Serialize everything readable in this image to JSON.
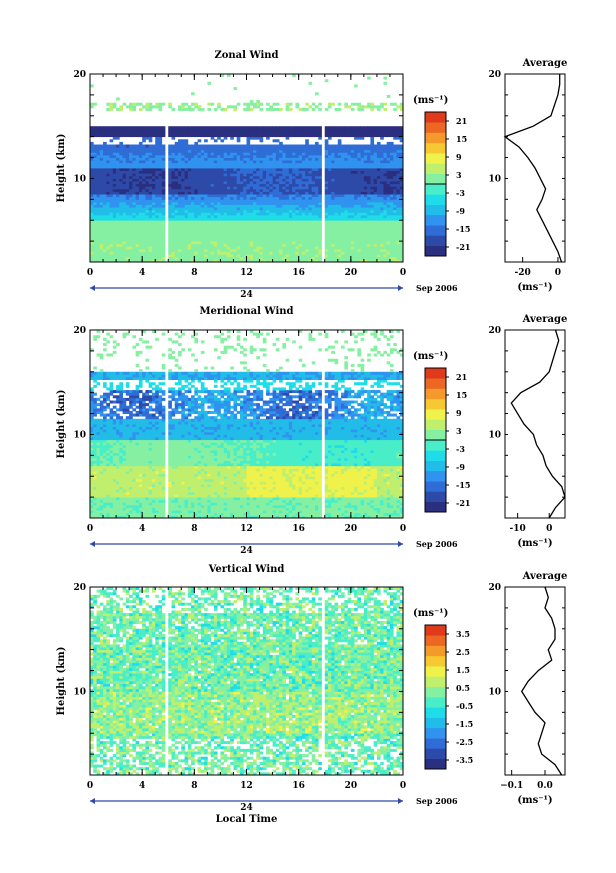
{
  "figure": {
    "xlabel": "Local Time",
    "date_label": "Sep 2006",
    "day_label": "24",
    "unit_label": "(ms⁻¹)"
  },
  "colors": {
    "palette": [
      "#2b2f7f",
      "#2e4aa8",
      "#2f6cd6",
      "#2f93ef",
      "#22bce8",
      "#1fdde8",
      "#49eec8",
      "#86f0a2",
      "#c0ef6e",
      "#eef24a",
      "#f6c832",
      "#f39a2a",
      "#ec6624",
      "#e03a1c"
    ]
  },
  "chart_data": [
    {
      "id": "zonal",
      "type": "heatmap",
      "title": "Zonal Wind",
      "ylabel": "Height (km)",
      "xlim": [
        0,
        24
      ],
      "xticks": [
        "0",
        "4",
        "8",
        "12",
        "16",
        "20",
        "0"
      ],
      "ylim": [
        2,
        20
      ],
      "yticks": [
        "10",
        "20"
      ],
      "colorbar": {
        "min": -24,
        "max": 24,
        "ticks": [
          "21",
          "15",
          "9",
          "3",
          "-3",
          "-9",
          "-15",
          "-21"
        ]
      },
      "average": {
        "title": "Average",
        "xlim": [
          -30,
          4
        ],
        "xticks": [
          "-20",
          "0"
        ],
        "unit": "(ms⁻¹)",
        "height": [
          2,
          3,
          4,
          5,
          6,
          7,
          8,
          9,
          10,
          11,
          12,
          13,
          14,
          15,
          16,
          17,
          18,
          19,
          20
        ],
        "value": [
          2,
          0,
          -3,
          -6,
          -9,
          -12,
          -9,
          -7,
          -10,
          -13,
          -17,
          -22,
          -30,
          -14,
          -4,
          -2,
          0,
          1,
          1
        ]
      }
    },
    {
      "id": "meridional",
      "type": "heatmap",
      "title": "Meridional Wind",
      "ylabel": "Height (km)",
      "xlim": [
        0,
        24
      ],
      "xticks": [
        "0",
        "4",
        "8",
        "12",
        "16",
        "20",
        "0"
      ],
      "ylim": [
        2,
        20
      ],
      "yticks": [
        "10",
        "20"
      ],
      "colorbar": {
        "min": -24,
        "max": 24,
        "ticks": [
          "21",
          "15",
          "9",
          "3",
          "-3",
          "-9",
          "-15",
          "-21"
        ]
      },
      "average": {
        "title": "Average",
        "xlim": [
          -14,
          5
        ],
        "xticks": [
          "-10",
          "0"
        ],
        "unit": "(ms⁻¹)",
        "height": [
          2,
          3,
          4,
          5,
          6,
          7,
          8,
          9,
          10,
          11,
          12,
          13,
          14,
          15,
          16,
          17,
          18,
          19,
          20
        ],
        "value": [
          0,
          2,
          5,
          4,
          1,
          -1,
          -2,
          -4,
          -5,
          -8,
          -10,
          -12,
          -9,
          -3,
          0,
          1,
          2,
          3,
          2
        ]
      }
    },
    {
      "id": "vertical",
      "type": "heatmap",
      "title": "Vertical Wind",
      "ylabel": "Height (km)",
      "xlim": [
        0,
        24
      ],
      "xticks": [
        "0",
        "4",
        "8",
        "12",
        "16",
        "20",
        "0"
      ],
      "ylim": [
        2,
        20
      ],
      "yticks": [
        "10",
        "20"
      ],
      "colorbar": {
        "min": -4,
        "max": 4,
        "ticks": [
          "3.5",
          "2.5",
          "1.5",
          "0.5",
          "-0.5",
          "-1.5",
          "-2.5",
          "-3.5"
        ]
      },
      "average": {
        "title": "Average",
        "xlim": [
          -0.12,
          0.06
        ],
        "xticks": [
          "−0.1",
          "0.0"
        ],
        "unit": "(ms⁻¹)",
        "height": [
          2,
          3,
          4,
          5,
          6,
          7,
          8,
          9,
          10,
          11,
          12,
          13,
          14,
          15,
          16,
          17,
          18,
          19,
          20
        ],
        "value": [
          0.05,
          0.03,
          -0.01,
          -0.02,
          -0.01,
          0.0,
          -0.03,
          -0.05,
          -0.07,
          -0.05,
          -0.02,
          0.02,
          0.01,
          0.03,
          0.03,
          0.02,
          0.0,
          0.01,
          0.0
        ]
      }
    }
  ]
}
